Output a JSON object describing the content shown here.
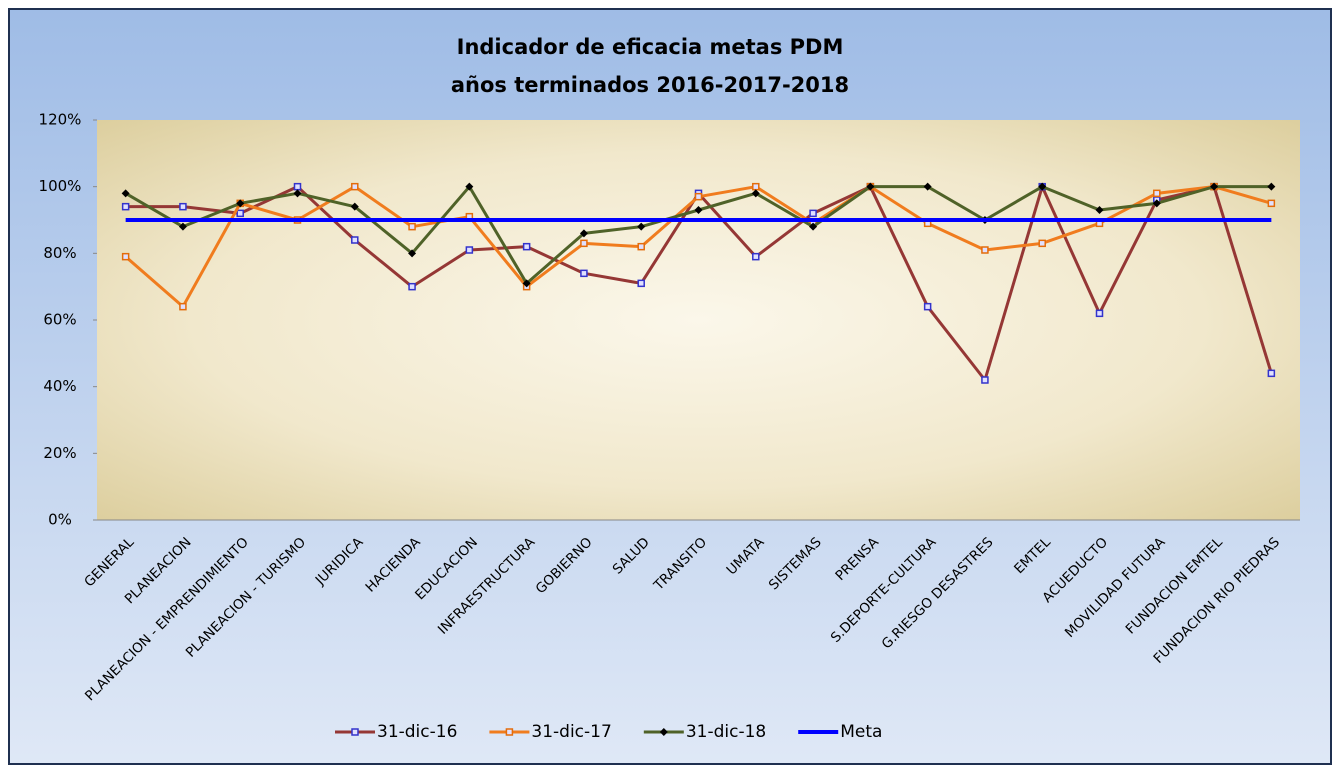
{
  "chart_data": {
    "type": "line",
    "title": "Indicador de eficacia metas PDM",
    "subtitle": "años terminados 2016-2017-2018",
    "categories": [
      "GENERAL",
      "PLANEACION",
      "PLANEACION - EMPRENDIMIENTO",
      "PLANEACION - TURISMO",
      "JURIDICA",
      "HACIENDA",
      "EDUCACION",
      "INFRAESTRUCTURA",
      "GOBIERNO",
      "SALUD",
      "TRANSITO",
      "UMATA",
      "SISTEMAS",
      "PRENSA",
      "S.DEPORTE-CULTURA",
      "G.RIESGO DESASTRES",
      "EMTEL",
      "ACUEDUCTO",
      "MOVILIDAD FUTURA",
      "FUNDACION EMTEL",
      "FUNDACION RIO PIEDRAS"
    ],
    "series": [
      {
        "name": "31-dic-16",
        "color": "#953735",
        "marker": "square",
        "marker_color": "#3333cc",
        "values": [
          94,
          94,
          92,
          100,
          84,
          70,
          81,
          82,
          74,
          71,
          98,
          79,
          92,
          100,
          64,
          42,
          100,
          62,
          96,
          100,
          44
        ]
      },
      {
        "name": "31-dic-17",
        "color": "#f07c1e",
        "marker": "square",
        "marker_color": "#e46c0a",
        "values": [
          79,
          64,
          95,
          90,
          100,
          88,
          91,
          70,
          83,
          82,
          97,
          100,
          89,
          100,
          89,
          81,
          83,
          89,
          98,
          100,
          95
        ]
      },
      {
        "name": "31-dic-18",
        "color": "#4f6228",
        "marker": "diamond",
        "marker_color": "#000000",
        "values": [
          98,
          88,
          95,
          98,
          94,
          80,
          100,
          71,
          86,
          88,
          93,
          98,
          88,
          100,
          100,
          90,
          100,
          93,
          95,
          100,
          100
        ]
      },
      {
        "name": "Meta",
        "color": "#0000ff",
        "marker": "none",
        "width": 4,
        "values": [
          90,
          90,
          90,
          90,
          90,
          90,
          90,
          90,
          90,
          90,
          90,
          90,
          90,
          90,
          90,
          90,
          90,
          90,
          90,
          90,
          90
        ]
      }
    ],
    "ylim": [
      0,
      120
    ],
    "yticks": [
      {
        "value": 0,
        "label": "0%"
      },
      {
        "value": 20,
        "label": "20%"
      },
      {
        "value": 40,
        "label": "40%"
      },
      {
        "value": 60,
        "label": "60%"
      },
      {
        "value": 80,
        "label": "80%"
      },
      {
        "value": 100,
        "label": "100%"
      },
      {
        "value": 120,
        "label": "120%"
      }
    ],
    "legend": "bottom"
  }
}
